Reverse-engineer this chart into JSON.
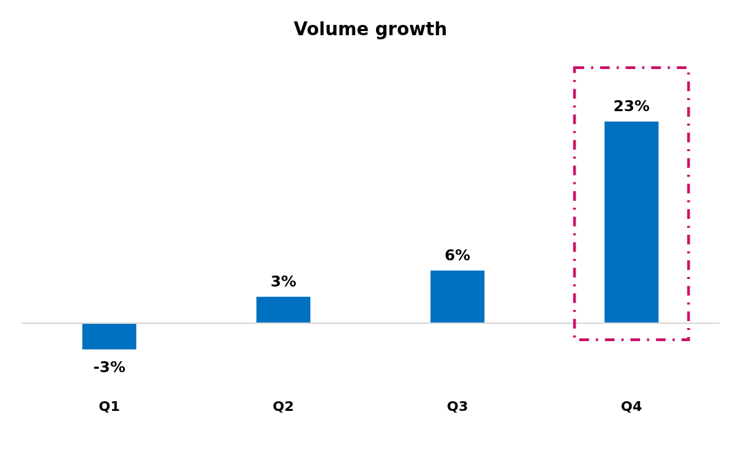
{
  "chart_data": {
    "type": "bar",
    "title": "Volume growth",
    "categories": [
      "Q1",
      "Q2",
      "Q3",
      "Q4"
    ],
    "values": [
      -3,
      3,
      6,
      23
    ],
    "value_labels": [
      "-3%",
      "3%",
      "6%",
      "23%"
    ],
    "color": "#0070c0",
    "grid": false
  }
}
